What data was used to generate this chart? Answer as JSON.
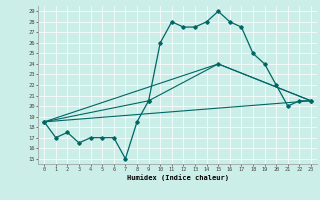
{
  "xlabel": "Humidex (Indice chaleur)",
  "bg_color": "#cceee8",
  "line_color": "#006666",
  "grid_color": "#ffffff",
  "xlim": [
    -0.5,
    23.5
  ],
  "ylim": [
    14.5,
    29.5
  ],
  "yticks": [
    15,
    16,
    17,
    18,
    19,
    20,
    21,
    22,
    23,
    24,
    25,
    26,
    27,
    28,
    29
  ],
  "xticks": [
    0,
    1,
    2,
    3,
    4,
    5,
    6,
    7,
    8,
    9,
    10,
    11,
    12,
    13,
    14,
    15,
    16,
    17,
    18,
    19,
    20,
    21,
    22,
    23
  ],
  "series": [
    {
      "x": [
        0,
        1,
        2,
        3,
        4,
        5,
        6,
        7,
        8,
        9,
        10,
        11,
        12,
        13,
        14,
        15,
        16,
        17,
        18,
        19,
        20,
        21,
        22,
        23
      ],
      "y": [
        18.5,
        17,
        17.5,
        16.5,
        17,
        17,
        17,
        15,
        18.5,
        20.5,
        26,
        28,
        27.5,
        27.5,
        28,
        29,
        28,
        27.5,
        25,
        24,
        22,
        20,
        20.5,
        20.5
      ],
      "marker": "D",
      "markersize": 1.8,
      "linewidth": 0.9,
      "zorder": 3
    },
    {
      "x": [
        0,
        23
      ],
      "y": [
        18.5,
        20.5
      ],
      "marker": null,
      "markersize": 0,
      "linewidth": 0.8,
      "zorder": 2
    },
    {
      "x": [
        0,
        15,
        23
      ],
      "y": [
        18.5,
        24,
        20.5
      ],
      "marker": null,
      "markersize": 0,
      "linewidth": 0.8,
      "zorder": 2
    },
    {
      "x": [
        0,
        9,
        15,
        23
      ],
      "y": [
        18.5,
        20.5,
        24,
        20.5
      ],
      "marker": "D",
      "markersize": 1.8,
      "linewidth": 0.8,
      "zorder": 2
    }
  ]
}
